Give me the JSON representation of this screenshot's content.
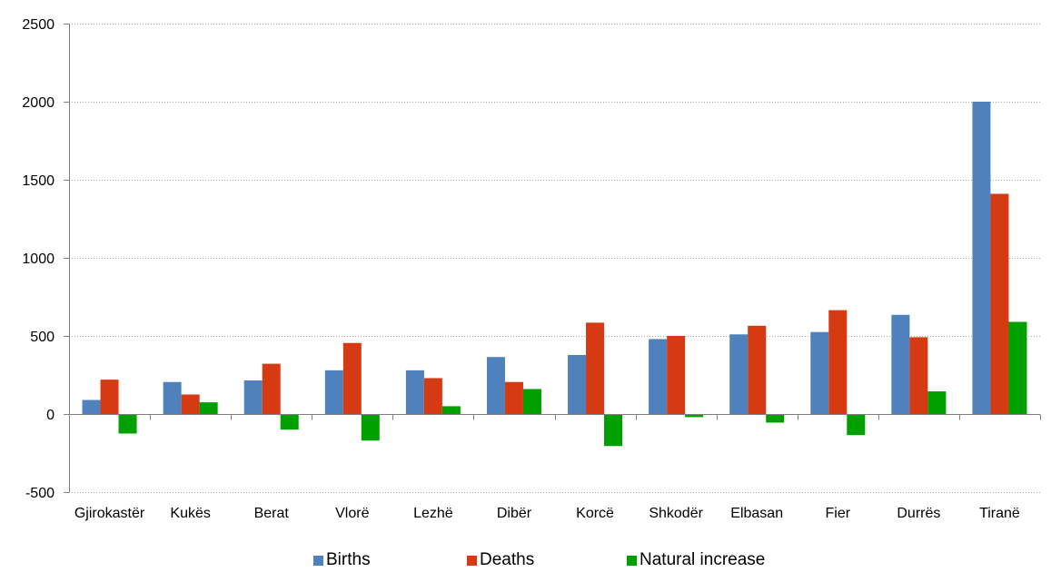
{
  "chart_data": {
    "type": "bar",
    "categories": [
      "Gjirokastër",
      "Kukës",
      "Berat",
      "Vlorë",
      "Lezhë",
      "Dibër",
      "Korcë",
      "Shkodër",
      "Elbasan",
      "Fier",
      "Durrës",
      "Tiranë"
    ],
    "series": [
      {
        "name": "Births",
        "color": "#4f81bd",
        "values": [
          90,
          205,
          215,
          280,
          280,
          365,
          378,
          480,
          510,
          525,
          635,
          2000
        ]
      },
      {
        "name": "Deaths",
        "color": "#d53a12",
        "values": [
          220,
          125,
          322,
          455,
          230,
          205,
          585,
          500,
          565,
          665,
          492,
          1410
        ]
      },
      {
        "name": "Natural increase",
        "color": "#00a000",
        "values": [
          -125,
          75,
          -100,
          -170,
          50,
          160,
          -205,
          -20,
          -55,
          -135,
          145,
          590
        ]
      }
    ],
    "yticks": [
      2500,
      2000,
      1500,
      1000,
      500,
      0,
      -500
    ],
    "ylim": [
      -500,
      2500
    ],
    "grid": true,
    "legend_position": "bottom"
  }
}
